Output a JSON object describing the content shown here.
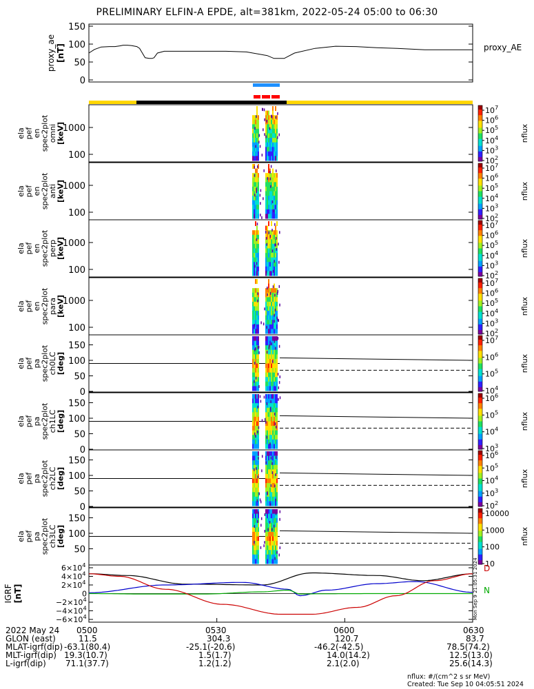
{
  "title": "PRELIMINARY ELFIN-A EPDE, alt=381km, 2022-05-24 05:00 to 06:30",
  "chart_data": [
    {
      "type": "line",
      "panel": "proxy_ae",
      "ylabel_lines": [
        "proxy_ae",
        "[nT]"
      ],
      "yticks": [
        "150",
        "100",
        "50",
        "0"
      ],
      "ylim": [
        0,
        150
      ],
      "legend": "proxy_AE",
      "x_minutes": [
        0,
        8,
        18,
        30,
        38,
        45,
        50,
        56,
        62,
        70,
        74,
        78,
        82,
        88,
        92,
        95,
        100,
        110,
        120,
        140,
        170,
        200,
        230,
        260,
        270,
        285,
        300,
        330,
        360,
        390,
        420,
        450,
        480,
        490,
        520,
        545,
        560
      ],
      "values": [
        75,
        85,
        92,
        93,
        93,
        95,
        97,
        97,
        96,
        93,
        88,
        75,
        62,
        60,
        60,
        62,
        75,
        80,
        80,
        80,
        80,
        80,
        78,
        68,
        60,
        60,
        75,
        88,
        94,
        93,
        90,
        88,
        85,
        84,
        84,
        84,
        84
      ]
    },
    {
      "type": "heatmap",
      "panels": [
        {
          "ylabel_lines": [
            "ela",
            "pef",
            "en",
            "spec2plot",
            "omni",
            "[keV]"
          ],
          "yticks": [
            "1000",
            "100"
          ],
          "cbar": [
            "10^7",
            "10^6",
            "10^5",
            "10^4",
            "10^3",
            "10^2"
          ],
          "zlabel": "nflux"
        },
        {
          "ylabel_lines": [
            "ela",
            "pef",
            "en",
            "spec2plot",
            "anti",
            "[keV]"
          ],
          "yticks": [
            "1000",
            "100"
          ],
          "cbar": [
            "10^7",
            "10^6",
            "10^5",
            "10^4",
            "10^3",
            "10^2"
          ],
          "zlabel": "nflux"
        },
        {
          "ylabel_lines": [
            "ela",
            "pef",
            "en",
            "spec2plot",
            "perp",
            "[keV]"
          ],
          "yticks": [
            "1000",
            "100"
          ],
          "cbar": [
            "10^7",
            "10^6",
            "10^5",
            "10^4",
            "10^3",
            "10^2"
          ],
          "zlabel": "nflux"
        },
        {
          "ylabel_lines": [
            "ela",
            "pef",
            "en",
            "spec2plot",
            "para",
            "[keV]"
          ],
          "yticks": [
            "1000",
            "100"
          ],
          "cbar": [
            "10^7",
            "10^6",
            "10^5",
            "10^4",
            "10^3",
            "10^2"
          ],
          "zlabel": "nflux"
        },
        {
          "ylabel_lines": [
            "ela",
            "pef",
            "pa",
            "spec2plot",
            "ch0LC",
            "[deg]"
          ],
          "yticks": [
            "150",
            "100",
            "50",
            "0"
          ],
          "cbar": [
            "10^7",
            "10^6",
            "10^5",
            "10^4"
          ],
          "zlabel": "nflux"
        },
        {
          "ylabel_lines": [
            "ela",
            "pef",
            "pa",
            "spec2plot",
            "ch1LC",
            "[deg]"
          ],
          "yticks": [
            "150",
            "100",
            "50",
            "0"
          ],
          "cbar": [
            "10^6",
            "10^5",
            "10^4",
            "10^3"
          ],
          "zlabel": "nflux"
        },
        {
          "ylabel_lines": [
            "ela",
            "pef",
            "pa",
            "spec2plot",
            "ch2LC",
            "[deg]"
          ],
          "yticks": [
            "150",
            "100",
            "50",
            "0"
          ],
          "cbar": [
            "10^6",
            "10^5",
            "10^4",
            "10^3",
            "10^2"
          ],
          "zlabel": "nflux"
        },
        {
          "ylabel_lines": [
            "ela",
            "pef",
            "pa",
            "spec2plot",
            "ch3LC",
            "[deg]"
          ],
          "yticks": [
            "150",
            "100",
            "50"
          ],
          "cbar": [
            "10000",
            "1000",
            "100",
            "10"
          ],
          "zlabel": "nflux"
        }
      ]
    },
    {
      "type": "line",
      "panel": "IGRF",
      "ylabel_lines": [
        "IGRF",
        "[nT]"
      ],
      "yticks": [
        "6×10^4",
        "4×10^4",
        "2×10^4",
        "0",
        "−2×10^4",
        "−4×10^4",
        "−6×10^4"
      ],
      "ylim": [
        -60000,
        60000
      ],
      "legend": [
        "D",
        "N"
      ],
      "series": [
        {
          "label_letter": "black",
          "color": "#000000",
          "x_frac": [
            0,
            0.1,
            0.25,
            0.45,
            0.58,
            0.75,
            0.87,
            1.0
          ],
          "values": [
            46000,
            42000,
            22000,
            20000,
            48000,
            42000,
            30000,
            46000
          ]
        },
        {
          "label_letter": "blue",
          "color": "#0000cc",
          "x_frac": [
            0,
            0.2,
            0.4,
            0.52,
            0.55,
            0.62,
            0.75,
            0.85,
            1.0
          ],
          "values": [
            2000,
            20000,
            26000,
            10000,
            -5000,
            8000,
            23000,
            28000,
            3000
          ]
        },
        {
          "label_letter": "green",
          "color": "#00aa00",
          "x_frac": [
            0,
            0.15,
            0.3,
            0.45,
            0.52,
            0.55,
            0.6,
            0.75,
            1.0
          ],
          "values": [
            0,
            -1000,
            -1000,
            4000,
            8000,
            -1000,
            -500,
            0,
            0
          ]
        },
        {
          "label_letter": "red",
          "color": "#cc0000",
          "x_frac": [
            0,
            0.08,
            0.2,
            0.35,
            0.5,
            0.58,
            0.7,
            0.8,
            0.9,
            1.0
          ],
          "values": [
            46000,
            40000,
            10000,
            -25000,
            -48000,
            -48000,
            -32000,
            -5000,
            30000,
            46000
          ]
        }
      ]
    }
  ],
  "footer": {
    "row_labels": [
      "2022 May 24",
      "GLON (east)",
      "MLAT-igrf(dip)",
      "MLT-igrf(dip)",
      "L-igrf(dip)"
    ],
    "times": [
      "0500",
      "0530",
      "0600",
      "0630"
    ],
    "col1": [
      "11.5",
      "-63.1(80.4)",
      "19.3(10.7)",
      "71.1(37.7)"
    ],
    "col2": [
      "304.3",
      "-25.1(-20.6)",
      "1.5(1.7)",
      "1.2(1.2)"
    ],
    "col3": [
      "120.7",
      "-46.2(-42.5)",
      "14.0(14.2)",
      "2.1(2.0)"
    ],
    "col4": [
      "83.7",
      "78.5(74.2)",
      "12.5(13.0)",
      "25.6(14.3)"
    ],
    "note_units": "nflux: #/(cm^2 s sr MeV)",
    "note_created": "Created: Tue Sep 10 04:05:51 2024",
    "side_stamp": "Mon Sep 9 21:05:31 2024"
  },
  "colors": {
    "orbit_bar_yellow": "#ffd700",
    "orbit_bar_black": "#000000",
    "sci_zone_blue": "#1e90ff",
    "sci_zone_red": "#ff0000"
  }
}
